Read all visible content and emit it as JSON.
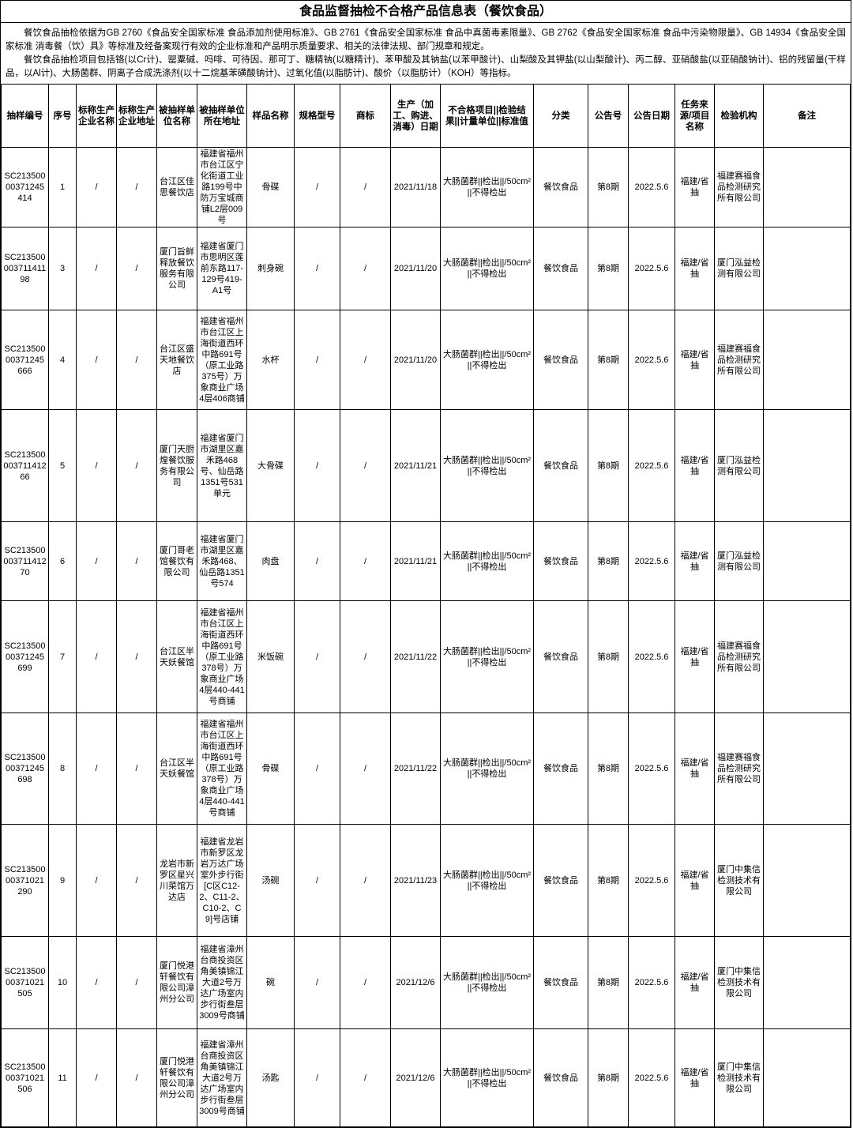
{
  "page": {
    "title": "食品监督抽检不合格产品信息表（餐饮食品）",
    "intro_paragraphs": [
      "餐饮食品抽检依据为GB 2760《食品安全国家标准 食品添加剂使用标准》、GB 2761《食品安全国家标准 食品中真菌毒素限量》、GB 2762《食品安全国家标准 食品中污染物限量》、GB 14934《食品安全国家标准 消毒餐（饮）具》等标准及经备案现行有效的企业标准和产品明示质量要求、相关的法律法规、部门规章和规定。",
      "餐饮食品抽检项目包括铬(以Cr计)、罂粟碱、吗啡、可待因、那可丁、糖精钠(以糖精计)、苯甲酸及其钠盐(以苯甲酸计)、山梨酸及其钾盐(以山梨酸计)、丙二醇、亚硝酸盐(以亚硝酸钠计)、铝的残留量(干样品，以Al计)、大肠菌群、阴离子合成洗涤剂(以十二烷基苯磺酸钠计)、过氧化值(以脂肪计)、酸价（以脂肪计）（KOH）等指标。"
    ]
  },
  "table": {
    "columns": [
      "抽样编号",
      "序号",
      "标称生产企业名称",
      "标称生产企业地址",
      "被抽样单位名称",
      "被抽样单位所在地址",
      "样品名称",
      "规格型号",
      "商标",
      "生产（加工、购进、消毒）日期",
      "不合格项目||检验结果||计量单位||标准值",
      "分类",
      "公告号",
      "公告日期",
      "任务来源/项目名称",
      "检验机构",
      "备注"
    ],
    "rows": [
      [
        "SC21350000371245414",
        "1",
        "/",
        "/",
        "台江区佳思餐饮店",
        "福建省福州市台江区宁化街道工业路199号中防万宝城商铺L2层009号",
        "骨碟",
        "/",
        "/",
        "2021/11/18",
        "大肠菌群||检出||/50cm²||不得检出",
        "餐饮食品",
        "第8期",
        "2022.5.6",
        "福建/省抽",
        "福建赛福食品检测研究所有限公司",
        ""
      ],
      [
        "SC21350000371141198",
        "3",
        "/",
        "/",
        "厦门旨鲜释放餐饮服务有限公司",
        "福建省厦门市思明区莲前东路117-129号419-A1号",
        "刺身碗",
        "/",
        "/",
        "2021/11/20",
        "大肠菌群||检出||/50cm²||不得检出",
        "餐饮食品",
        "第8期",
        "2022.5.6",
        "福建/省抽",
        "厦门泓益检测有限公司",
        ""
      ],
      [
        "SC21350000371245666",
        "4",
        "/",
        "/",
        "台江区盛天地餐饮店",
        "福建省福州市台江区上海街道西环中路691号（原工业路375号）万象商业广场4层406商铺",
        "水杯",
        "/",
        "/",
        "2021/11/20",
        "大肠菌群||检出||/50cm²||不得检出",
        "餐饮食品",
        "第8期",
        "2022.5.6",
        "福建/省抽",
        "福建赛福食品检测研究所有限公司",
        ""
      ],
      [
        "SC21350000371141266",
        "5",
        "/",
        "/",
        "厦门天厨煌餐饮服务有限公司",
        "福建省厦门市湖里区嘉禾路468号、仙岳路1351号531单元",
        "大骨碟",
        "/",
        "/",
        "2021/11/21",
        "大肠菌群||检出||/50cm²||不得检出",
        "餐饮食品",
        "第8期",
        "2022.5.6",
        "福建/省抽",
        "厦门泓益检测有限公司",
        ""
      ],
      [
        "SC21350000371141270",
        "6",
        "/",
        "/",
        "厦门哥老馆餐饮有限公司",
        "福建省厦门市湖里区嘉禾路468、仙岳路1351号574",
        "肉盘",
        "/",
        "/",
        "2021/11/21",
        "大肠菌群||检出||/50cm²||不得检出",
        "餐饮食品",
        "第8期",
        "2022.5.6",
        "福建/省抽",
        "厦门泓益检测有限公司",
        ""
      ],
      [
        "SC21350000371245699",
        "7",
        "/",
        "/",
        "台江区半天妖餐馆",
        "福建省福州市台江区上海街道西环中路691号（原工业路378号）万象商业广场4层440-441号商铺",
        "米饭碗",
        "/",
        "/",
        "2021/11/22",
        "大肠菌群||检出||/50cm²||不得检出",
        "餐饮食品",
        "第8期",
        "2022.5.6",
        "福建/省抽",
        "福建赛福食品检测研究所有限公司",
        ""
      ],
      [
        "SC21350000371245698",
        "8",
        "/",
        "/",
        "台江区半天妖餐馆",
        "福建省福州市台江区上海街道西环中路691号（原工业路378号）万象商业广场4层440-441号商铺",
        "骨碟",
        "/",
        "/",
        "2021/11/22",
        "大肠菌群||检出||/50cm²||不得检出",
        "餐饮食品",
        "第8期",
        "2022.5.6",
        "福建/省抽",
        "福建赛福食品检测研究所有限公司",
        ""
      ],
      [
        "SC21350000371021290",
        "9",
        "/",
        "/",
        "龙岩市新罗区星兴川菜馆万达店",
        "福建省龙岩市新罗区龙岩万达广场室外步行街[C区C12-2、C11-2、C10-2、C9]号店铺",
        "汤碗",
        "/",
        "/",
        "2021/11/23",
        "大肠菌群||检出||/50cm²||不得检出",
        "餐饮食品",
        "第8期",
        "2022.5.6",
        "福建/省抽",
        "厦门中集信检测技术有限公司",
        ""
      ],
      [
        "SC21350000371021505",
        "10",
        "/",
        "/",
        "厦门悦港轩餐饮有限公司漳州分公司",
        "福建省漳州台商投资区角美镇锦江大道2号万达广场室内步行街叁层3009号商铺",
        "碗",
        "/",
        "/",
        "2021/12/6",
        "大肠菌群||检出||/50cm²||不得检出",
        "餐饮食品",
        "第8期",
        "2022.5.6",
        "福建/省抽",
        "厦门中集信检测技术有限公司",
        ""
      ],
      [
        "SC21350000371021506",
        "11",
        "/",
        "/",
        "厦门悦港轩餐饮有限公司漳州分公司",
        "福建省漳州台商投资区角美镇锦江大道2号万达广场室内步行街叁层3009号商铺",
        "汤匙",
        "/",
        "/",
        "2021/12/6",
        "大肠菌群||检出||/50cm²||不得检出",
        "餐饮食品",
        "第8期",
        "2022.5.6",
        "福建/省抽",
        "厦门中集信检测技术有限公司",
        ""
      ]
    ]
  }
}
